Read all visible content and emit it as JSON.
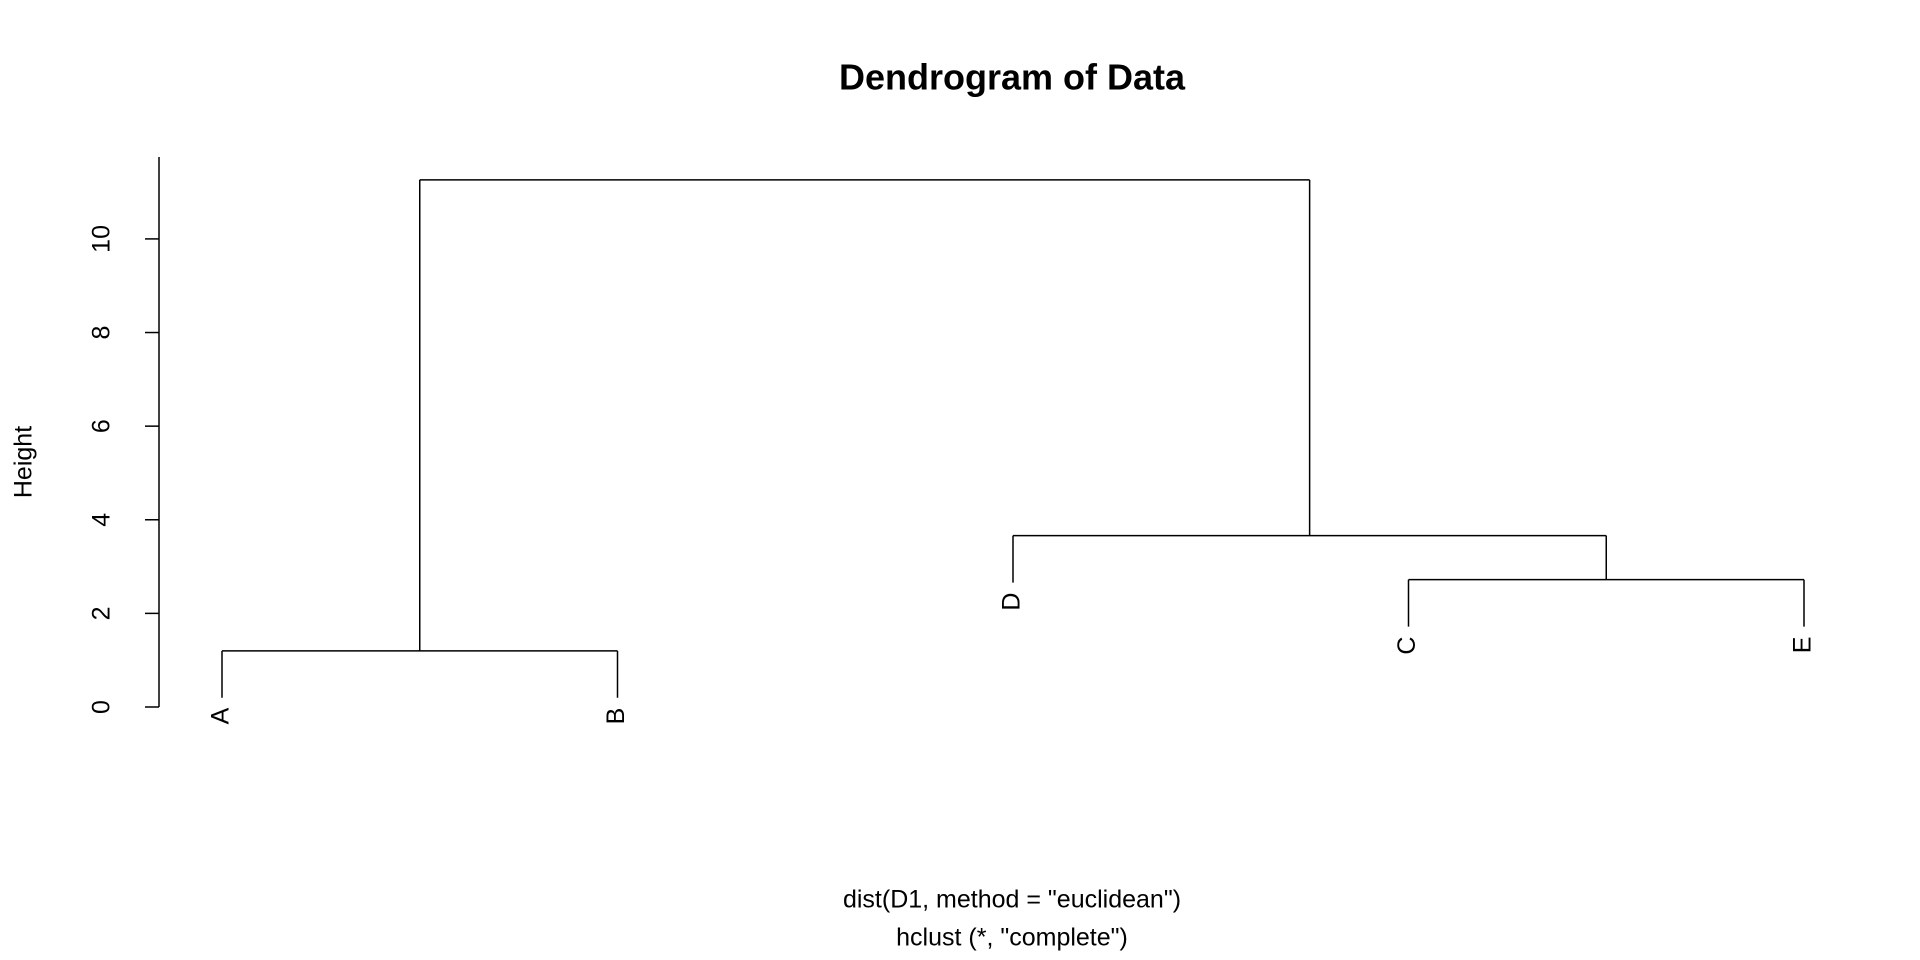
{
  "chart_data": {
    "type": "dendrogram",
    "title": "Dendrogram of Data",
    "ylabel": "Height",
    "xlabel": [
      "dist(D1, method = \"euclidean\")",
      "hclust (*, \"complete\")"
    ],
    "ylim": [
      0,
      11.75
    ],
    "yticks": [
      0,
      2,
      4,
      6,
      8,
      10
    ],
    "color": "#000000",
    "tree": {
      "height": 11.26,
      "children": [
        {
          "height": 1.2,
          "children": [
            {
              "label": "A"
            },
            {
              "label": "B"
            }
          ]
        },
        {
          "height": 3.66,
          "children": [
            {
              "label": "D"
            },
            {
              "height": 2.72,
              "children": [
                {
                  "label": "C"
                },
                {
                  "label": "E"
                }
              ]
            }
          ]
        }
      ]
    }
  }
}
